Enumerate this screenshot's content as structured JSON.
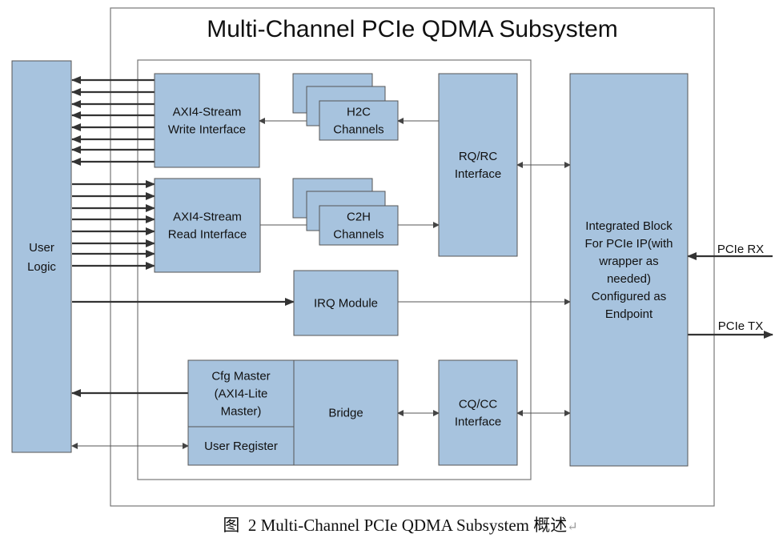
{
  "title": "Multi-Channel PCIe QDMA Subsystem",
  "blocks": {
    "user_logic": [
      "User",
      "Logic"
    ],
    "axi_write": [
      "AXI4-Stream",
      "Write Interface"
    ],
    "axi_read": [
      "AXI4-Stream",
      "Read Interface"
    ],
    "h2c": [
      "H2C",
      "Channels"
    ],
    "c2h": [
      "C2H",
      "Channels"
    ],
    "rq_rc": [
      "RQ/RC",
      "Interface"
    ],
    "irq": [
      "IRQ Module"
    ],
    "cfg_master": [
      "Cfg Master",
      "(AXI4-Lite",
      "Master)"
    ],
    "user_register": [
      "User Register"
    ],
    "bridge": [
      "Bridge"
    ],
    "cq_cc": [
      "CQ/CC",
      "Interface"
    ],
    "integrated": [
      "Integrated Block",
      "For PCIe IP(with",
      "wrapper as",
      "needed)",
      "Configured as",
      "Endpoint"
    ]
  },
  "ports": {
    "rx": "PCIe RX",
    "tx": "PCIe TX"
  },
  "colors": {
    "block_fill": "#a7c3de",
    "border": "#555555"
  },
  "caption": {
    "prefix": "图",
    "text": "2 Multi-Channel PCIe QDMA Subsystem 概述",
    "mark": "↵"
  }
}
